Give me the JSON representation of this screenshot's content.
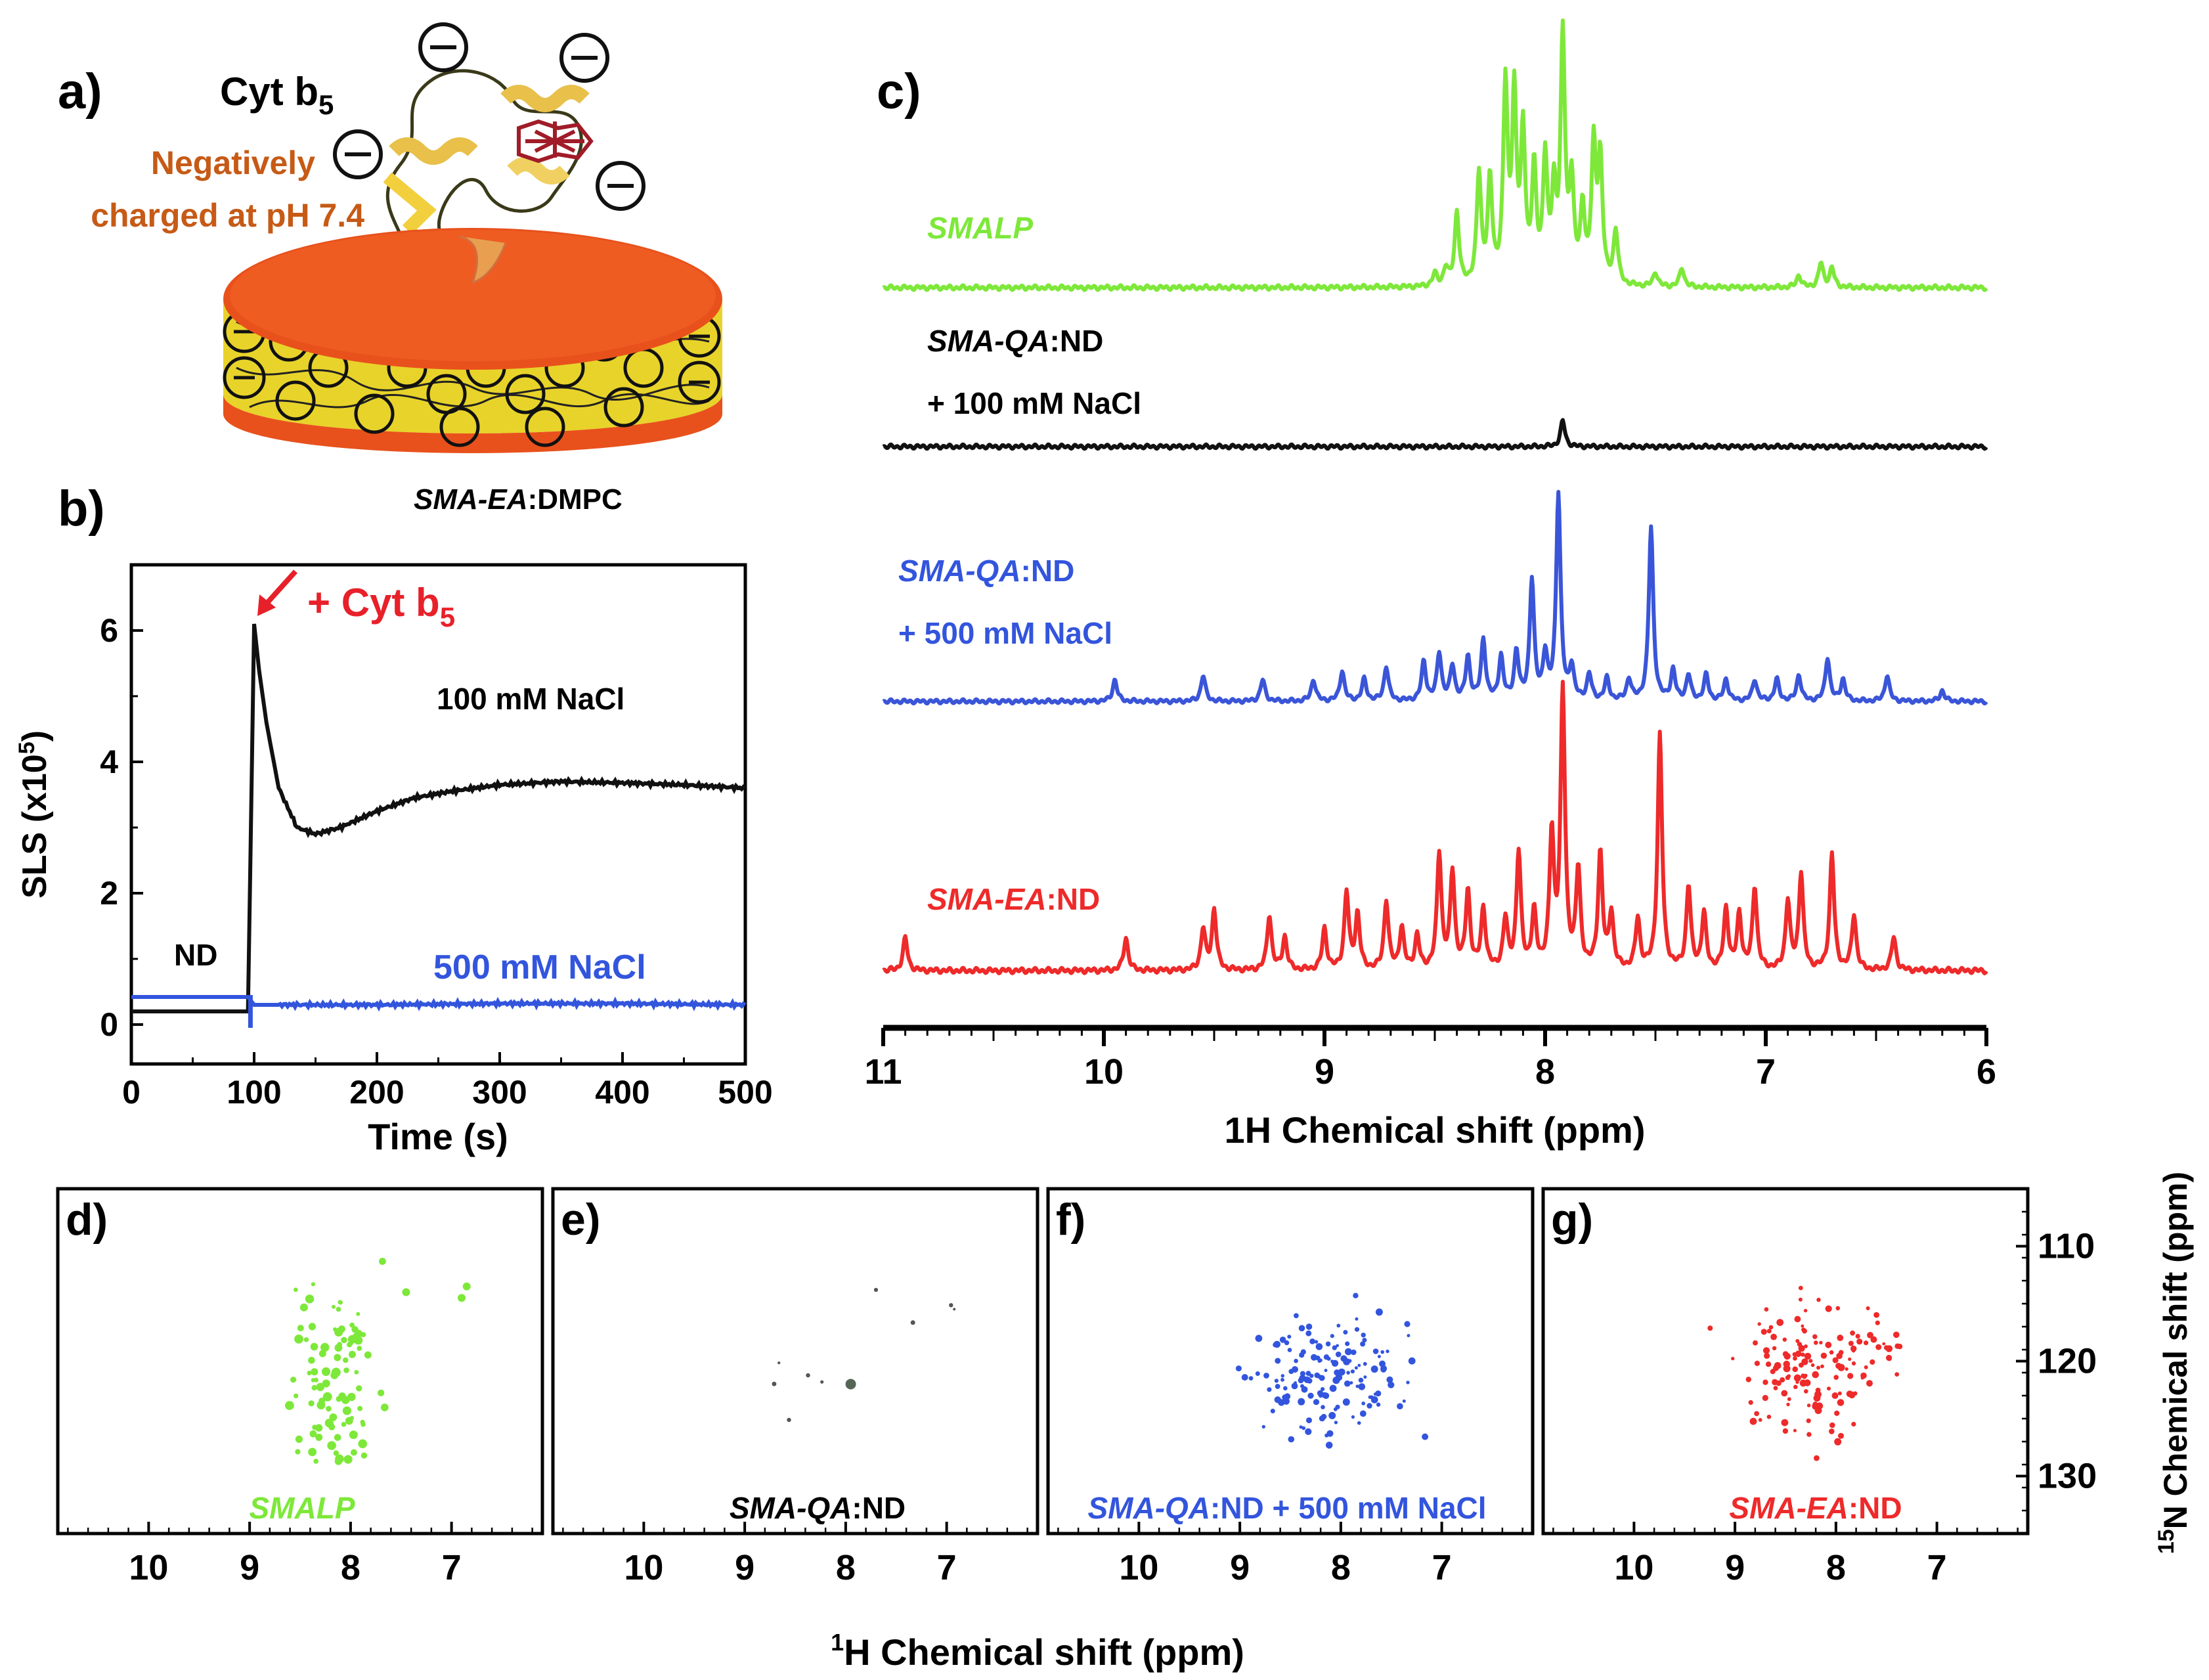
{
  "panels": {
    "a": {
      "letter": "a)",
      "protein_name": "Cyt b",
      "protein_sub": "5",
      "charge_line1": "Negatively",
      "charge_line2": "charged at pH 7.4",
      "minus_glyph": "−",
      "nanodisc_label_italic": "SMA-EA",
      "nanodisc_label_rest": ":DMPC",
      "colors": {
        "charge_text": "#c65a16",
        "lipid_head": "#e8511c",
        "polymer": "#e9d52a",
        "protein": "#e8c04a",
        "heme": "#a01c28"
      }
    },
    "b": {
      "letter": "b)",
      "annotation": "+ Cyt b",
      "annotation_sub": "5",
      "label_100": "100  mM NaCl",
      "label_500": "500 mM NaCl",
      "label_nd": "ND"
    },
    "c": {
      "letter": "c)",
      "labels": {
        "smalp": "SMALP",
        "qa_nd_italic": "SMA-QA",
        "qa_nd_rest": ":ND",
        "plus_100": "+ 100 mM NaCl",
        "plus_500": "+ 500 mM NaCl",
        "ea_nd_italic": "SMA-EA",
        "ea_nd_rest": ":ND"
      }
    },
    "d": {
      "letter": "d)",
      "label": "SMALP"
    },
    "e": {
      "letter": "e)",
      "label_italic": "SMA-QA",
      "label_rest": ":ND"
    },
    "f": {
      "letter": "f)",
      "label_italic": "SMA-QA",
      "label_rest": ":ND + 500 mM NaCl"
    },
    "g": {
      "letter": "g)",
      "label_italic": "SMA-EA",
      "label_rest": ":ND"
    },
    "hsqc_xlabel_sup": "1",
    "hsqc_xlabel": "H Chemical shift (ppm)",
    "hsqc_ylabel_sup": "15",
    "hsqc_ylabel": "N Chemical shift (ppm)"
  },
  "chart_data": [
    {
      "panel": "b",
      "type": "line",
      "xlabel": "Time (s)",
      "ylabel": "SLS (x10",
      "ylabel_sup": "5",
      "ylabel_close": ")",
      "xlim": [
        0,
        500
      ],
      "ylim": [
        -0.6,
        7.0
      ],
      "xticks": [
        0,
        100,
        200,
        300,
        400,
        500
      ],
      "yticks": [
        0,
        2,
        4,
        6
      ],
      "series": [
        {
          "name": "100 mM NaCl",
          "color": "#111111",
          "x": [
            0,
            95,
            100,
            104,
            110,
            120,
            135,
            150,
            170,
            200,
            230,
            260,
            300,
            350,
            400,
            450,
            500
          ],
          "y": [
            0.2,
            0.2,
            6.1,
            5.4,
            4.6,
            3.6,
            3.0,
            2.9,
            3.0,
            3.25,
            3.45,
            3.55,
            3.65,
            3.7,
            3.68,
            3.65,
            3.6
          ]
        },
        {
          "name": "500 mM NaCl",
          "color": "#3355dd",
          "x": [
            0,
            95,
            100,
            150,
            200,
            300,
            400,
            500
          ],
          "y": [
            0.42,
            0.42,
            0.3,
            0.3,
            0.3,
            0.32,
            0.32,
            0.3
          ]
        }
      ]
    },
    {
      "panel": "c",
      "type": "line",
      "xlabel": "1H Chemical shift (ppm)",
      "xlim": [
        11,
        6
      ],
      "xticks": [
        11,
        10,
        9,
        8,
        7,
        6
      ],
      "series": [
        {
          "name": "SMALP",
          "color": "#7ee83a",
          "peaks": [
            [
              8.5,
              0.05
            ],
            [
              8.45,
              0.07
            ],
            [
              8.4,
              0.3
            ],
            [
              8.3,
              0.45
            ],
            [
              8.25,
              0.42
            ],
            [
              8.18,
              0.8
            ],
            [
              8.14,
              0.75
            ],
            [
              8.1,
              0.6
            ],
            [
              8.05,
              0.45
            ],
            [
              8.0,
              0.5
            ],
            [
              7.96,
              0.35
            ],
            [
              7.92,
              1.0
            ],
            [
              7.88,
              0.4
            ],
            [
              7.83,
              0.3
            ],
            [
              7.78,
              0.55
            ],
            [
              7.75,
              0.5
            ],
            [
              7.68,
              0.22
            ],
            [
              7.5,
              0.06
            ],
            [
              7.38,
              0.08
            ],
            [
              6.85,
              0.05
            ],
            [
              6.75,
              0.1
            ],
            [
              6.7,
              0.08
            ]
          ]
        },
        {
          "name": "SMA-QA:ND + 100 mM NaCl",
          "color": "#111111",
          "peaks": [
            [
              7.92,
              0.12
            ]
          ]
        },
        {
          "name": "SMA-QA:ND + 500 mM NaCl",
          "color": "#3a55d8",
          "peaks": [
            [
              9.95,
              0.1
            ],
            [
              9.55,
              0.12
            ],
            [
              9.28,
              0.1
            ],
            [
              9.05,
              0.1
            ],
            [
              8.92,
              0.14
            ],
            [
              8.82,
              0.1
            ],
            [
              8.72,
              0.16
            ],
            [
              8.55,
              0.18
            ],
            [
              8.48,
              0.22
            ],
            [
              8.42,
              0.16
            ],
            [
              8.35,
              0.2
            ],
            [
              8.28,
              0.28
            ],
            [
              8.2,
              0.2
            ],
            [
              8.13,
              0.22
            ],
            [
              8.06,
              0.55
            ],
            [
              8.0,
              0.2
            ],
            [
              7.94,
              0.95
            ],
            [
              7.88,
              0.15
            ],
            [
              7.8,
              0.12
            ],
            [
              7.72,
              0.1
            ],
            [
              7.62,
              0.1
            ],
            [
              7.52,
              0.8
            ],
            [
              7.42,
              0.14
            ],
            [
              7.35,
              0.12
            ],
            [
              7.27,
              0.12
            ],
            [
              7.18,
              0.1
            ],
            [
              7.05,
              0.1
            ],
            [
              6.95,
              0.1
            ],
            [
              6.85,
              0.12
            ],
            [
              6.72,
              0.2
            ],
            [
              6.65,
              0.1
            ],
            [
              6.45,
              0.12
            ],
            [
              6.2,
              0.05
            ]
          ]
        },
        {
          "name": "SMA-EA:ND",
          "color": "#ee2a2a",
          "peaks": [
            [
              10.9,
              0.12
            ],
            [
              9.9,
              0.12
            ],
            [
              9.55,
              0.15
            ],
            [
              9.5,
              0.22
            ],
            [
              9.25,
              0.2
            ],
            [
              9.18,
              0.12
            ],
            [
              9.0,
              0.15
            ],
            [
              8.9,
              0.28
            ],
            [
              8.85,
              0.2
            ],
            [
              8.72,
              0.25
            ],
            [
              8.65,
              0.15
            ],
            [
              8.58,
              0.12
            ],
            [
              8.48,
              0.42
            ],
            [
              8.42,
              0.35
            ],
            [
              8.35,
              0.28
            ],
            [
              8.28,
              0.22
            ],
            [
              8.18,
              0.18
            ],
            [
              8.12,
              0.42
            ],
            [
              8.05,
              0.2
            ],
            [
              7.97,
              0.48
            ],
            [
              7.92,
              1.0
            ],
            [
              7.85,
              0.35
            ],
            [
              7.75,
              0.42
            ],
            [
              7.7,
              0.2
            ],
            [
              7.58,
              0.18
            ],
            [
              7.48,
              0.85
            ],
            [
              7.35,
              0.3
            ],
            [
              7.28,
              0.2
            ],
            [
              7.18,
              0.22
            ],
            [
              7.12,
              0.2
            ],
            [
              7.05,
              0.3
            ],
            [
              6.9,
              0.25
            ],
            [
              6.84,
              0.35
            ],
            [
              6.7,
              0.42
            ],
            [
              6.6,
              0.2
            ],
            [
              6.42,
              0.12
            ]
          ]
        }
      ]
    },
    {
      "panel": "d-g",
      "type": "scatter",
      "xlabel": "1H Chemical shift (ppm)",
      "ylabel": "15N Chemical shift (ppm)",
      "xticks": [
        10,
        9,
        8,
        7
      ],
      "yticks": [
        110,
        120,
        130
      ],
      "xlim": [
        10.9,
        6.1
      ],
      "ylim": [
        105,
        135
      ]
    }
  ]
}
